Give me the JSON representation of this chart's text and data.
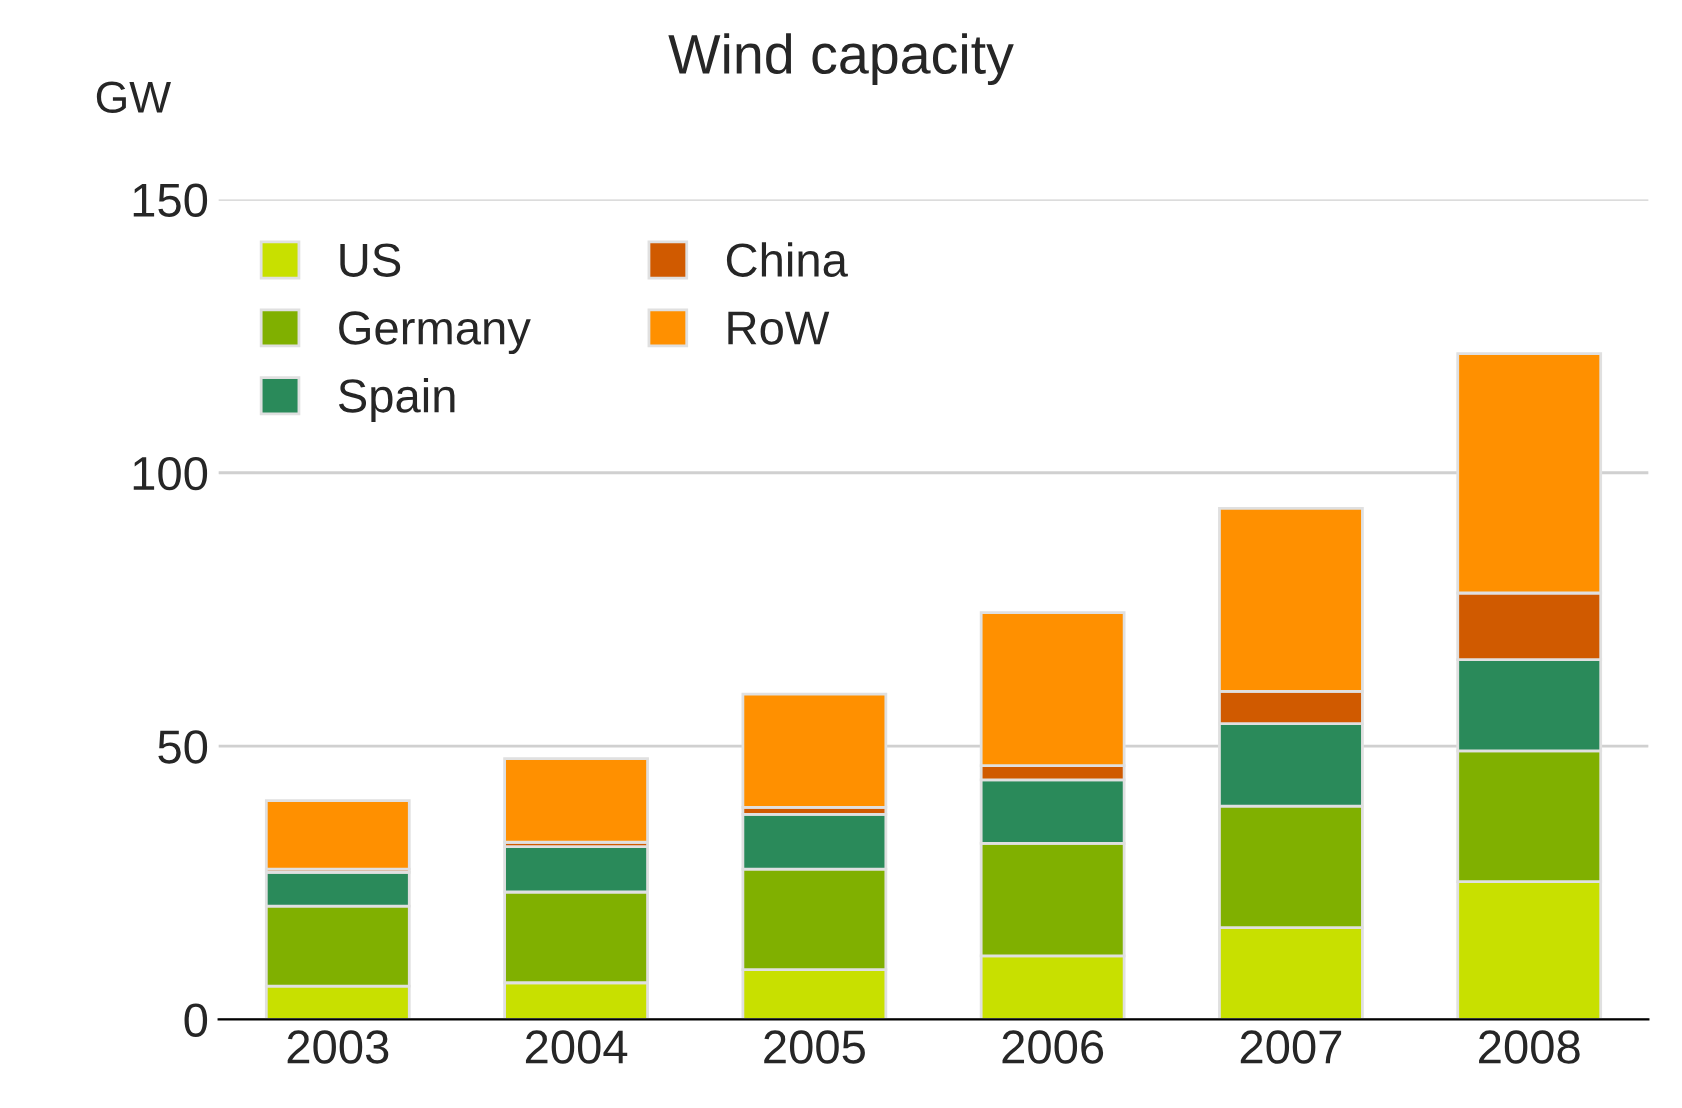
{
  "chart_data": {
    "type": "bar",
    "title": "Wind capacity",
    "ylabel": "GW",
    "stacked": true,
    "categories": [
      "2003",
      "2004",
      "2005",
      "2006",
      "2007",
      "2008"
    ],
    "series": [
      {
        "name": "US",
        "color": "#c8e000",
        "values": [
          6.1,
          6.7,
          9.1,
          11.6,
          16.8,
          25.2
        ]
      },
      {
        "name": "Germany",
        "color": "#80b000",
        "values": [
          14.6,
          16.6,
          18.4,
          20.6,
          22.2,
          23.9
        ]
      },
      {
        "name": "Spain",
        "color": "#2a8a5a",
        "values": [
          6.2,
          8.3,
          10.0,
          11.6,
          15.1,
          16.7
        ]
      },
      {
        "name": "China",
        "color": "#d05a00",
        "values": [
          0.6,
          0.8,
          1.3,
          2.6,
          5.9,
          12.2
        ]
      },
      {
        "name": "RoW",
        "color": "#ff9000",
        "values": [
          12.5,
          15.3,
          20.7,
          28.0,
          33.5,
          43.8
        ]
      }
    ],
    "ylim": [
      0,
      150
    ],
    "yticks": [
      0,
      50,
      100,
      150
    ],
    "grid": "y",
    "legend": "top left"
  }
}
